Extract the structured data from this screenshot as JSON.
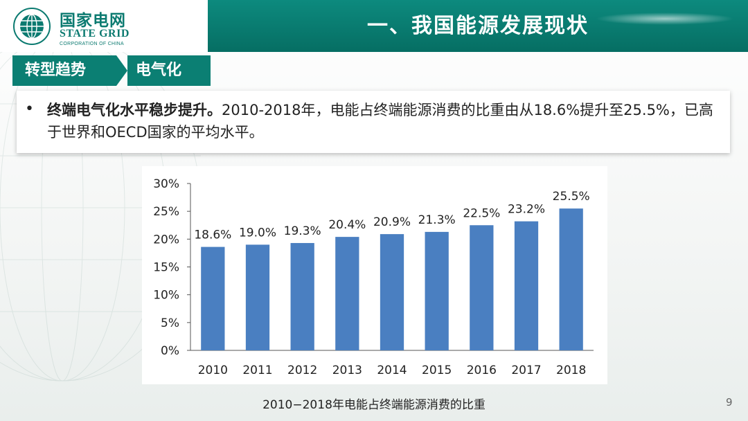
{
  "logo": {
    "cn": "国家电网",
    "en": "STATE GRID",
    "sub": "CORPORATION OF CHINA"
  },
  "header": {
    "title": "一、我国能源发展现状"
  },
  "breadcrumb": {
    "level1": "转型趋势",
    "level2": "电气化"
  },
  "bullet": {
    "marker": "•",
    "bold": "终端电气化水平稳步提升。",
    "text": "2010-2018年，电能占终端能源消费的比重由从18.6%提升至25.5%，已高于世界和OECD国家的平均水平。"
  },
  "caption": "2010−2018年电能占终端能源消费的比重",
  "page_number": "9",
  "colors": {
    "brand": "#0b7f73",
    "bar": "#4a7fc1"
  },
  "chart_data": {
    "type": "bar",
    "categories": [
      "2010",
      "2011",
      "2012",
      "2013",
      "2014",
      "2015",
      "2016",
      "2017",
      "2018"
    ],
    "values": [
      18.6,
      19.0,
      19.3,
      20.4,
      20.9,
      21.3,
      22.5,
      23.2,
      25.5
    ],
    "data_labels": [
      "18.6%",
      "19.0%",
      "19.3%",
      "20.4%",
      "20.9%",
      "21.3%",
      "22.5%",
      "23.2%",
      "25.5%"
    ],
    "y_ticks": [
      "0%",
      "5%",
      "10%",
      "15%",
      "20%",
      "25%",
      "30%"
    ],
    "ylim": [
      0,
      30
    ],
    "title": "",
    "xlabel": "",
    "ylabel": "",
    "grid": false,
    "legend": "none"
  }
}
